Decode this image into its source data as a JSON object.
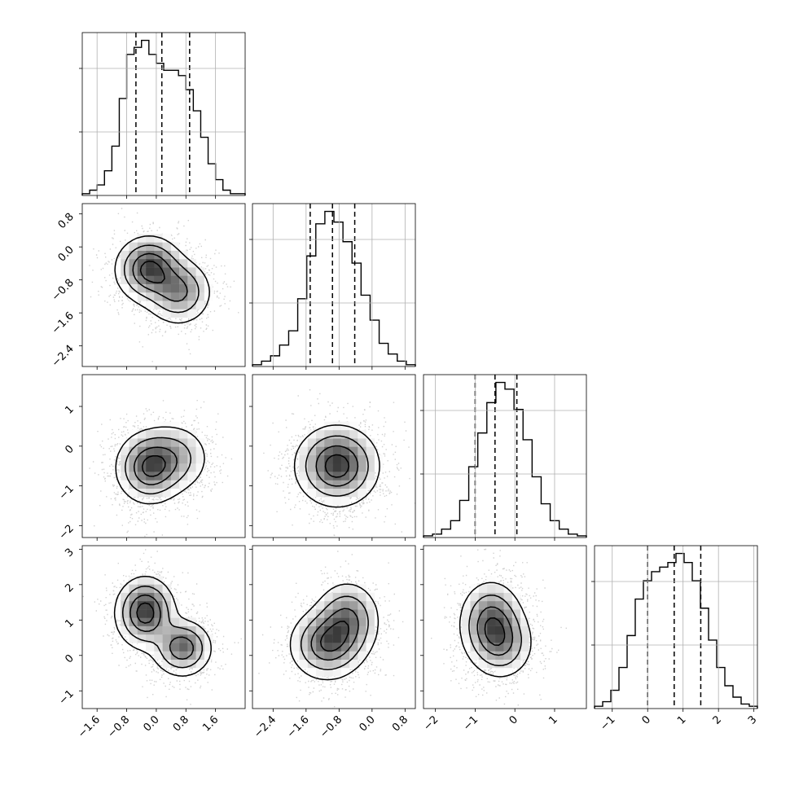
{
  "chart_data": {
    "type": "corner",
    "title": "",
    "n_parameters": 4,
    "grid": true,
    "quantile_lines": "dashed",
    "parameters": [
      {
        "name": "",
        "range": [
          -2.0,
          2.4
        ],
        "ticks": [
          "-1.6",
          "-0.8",
          "0.0",
          "0.8",
          "1.6"
        ],
        "tick_values": [
          -1.6,
          -0.8,
          0.0,
          0.8,
          1.6
        ],
        "quantiles": [
          -0.55,
          0.15,
          0.9
        ],
        "histogram": [
          1,
          3,
          6,
          14,
          28,
          55,
          80,
          84,
          88,
          80,
          75,
          71,
          71,
          68,
          60,
          48,
          33,
          18,
          9,
          3,
          1,
          1
        ]
      },
      {
        "name": "",
        "range": [
          -2.9,
          1.05
        ],
        "ticks": [
          "-2.4",
          "-1.6",
          "-0.8",
          "0.0",
          "0.8"
        ],
        "tick_values": [
          -2.4,
          -1.6,
          -0.8,
          0.0,
          0.8
        ],
        "quantiles": [
          -1.5,
          -0.96,
          -0.42
        ],
        "histogram": [
          1,
          3,
          6,
          12,
          20,
          38,
          62,
          80,
          87,
          81,
          70,
          58,
          40,
          26,
          13,
          7,
          3,
          1
        ]
      },
      {
        "name": "",
        "range": [
          -2.3,
          1.8
        ],
        "ticks": [
          "-2",
          "-1",
          "0",
          "1"
        ],
        "tick_values": [
          -2,
          -1,
          0,
          1
        ],
        "quantiles": [
          -1.0,
          -0.5,
          0.05
        ],
        "histogram": [
          1,
          2,
          5,
          10,
          22,
          42,
          62,
          80,
          92,
          88,
          76,
          58,
          36,
          20,
          10,
          5,
          2,
          1
        ]
      },
      {
        "name": "",
        "range": [
          -1.5,
          3.1
        ],
        "ticks": [
          "-1",
          "0",
          "1",
          "2",
          "3"
        ],
        "tick_values": [
          -1,
          0,
          1,
          2,
          3
        ],
        "quantiles": [
          0.0,
          0.75,
          1.5
        ],
        "histogram": [
          1,
          3,
          8,
          18,
          32,
          48,
          56,
          60,
          62,
          64,
          68,
          64,
          56,
          44,
          30,
          18,
          10,
          5,
          2,
          1
        ]
      }
    ],
    "pairs": [
      {
        "x": 0,
        "y": 1,
        "modes": [
          [
            -0.2,
            -0.55,
            0.45,
            0.4,
            1.0
          ],
          [
            0.6,
            -1.1,
            0.45,
            0.4,
            0.7
          ]
        ]
      },
      {
        "x": 0,
        "y": 2,
        "modes": [
          [
            -0.2,
            -0.55,
            0.45,
            0.45,
            1.0
          ],
          [
            0.5,
            -0.3,
            0.5,
            0.45,
            0.5
          ]
        ]
      },
      {
        "x": 1,
        "y": 2,
        "modes": [
          [
            -0.85,
            -0.5,
            0.5,
            0.5,
            1.0
          ]
        ]
      },
      {
        "x": 0,
        "y": 3,
        "modes": [
          [
            -0.3,
            1.2,
            0.4,
            0.5,
            1.0
          ],
          [
            0.7,
            0.2,
            0.4,
            0.4,
            0.8
          ]
        ]
      },
      {
        "x": 1,
        "y": 3,
        "modes": [
          [
            -1.1,
            0.3,
            0.45,
            0.5,
            1.0
          ],
          [
            -0.6,
            1.0,
            0.4,
            0.55,
            0.8
          ]
        ]
      },
      {
        "x": 2,
        "y": 3,
        "modes": [
          [
            -0.6,
            0.9,
            0.4,
            0.6,
            1.0
          ],
          [
            -0.3,
            0.3,
            0.4,
            0.5,
            0.6
          ]
        ]
      }
    ]
  }
}
